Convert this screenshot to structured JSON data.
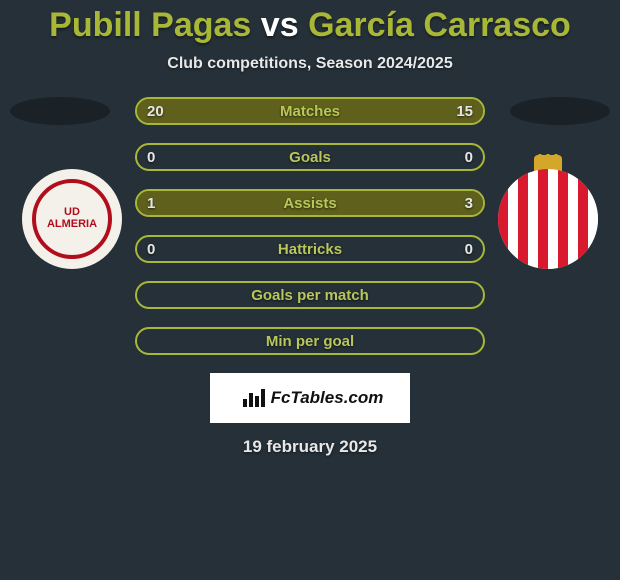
{
  "title_left": "Pubill Pagas",
  "title_vs": " vs ",
  "title_right": "García Carrasco",
  "title_color_left": "#a9b737",
  "title_color_vs": "#ffffff",
  "title_color_right": "#a9b737",
  "subtitle": "Club competitions, Season 2024/2025",
  "date": "19 february 2025",
  "watermark": "FcTables.com",
  "left_crest_text": "UD\nALMERIA",
  "bar_border": "#a9b737",
  "fill_left_color": "#5e601b",
  "fill_right_color": "#5e601b",
  "label_color": "#b9c75a",
  "bars": [
    {
      "label": "Matches",
      "left": "20",
      "right": "15",
      "left_pct": 57,
      "right_pct": 43
    },
    {
      "label": "Goals",
      "left": "0",
      "right": "0",
      "left_pct": 0,
      "right_pct": 0
    },
    {
      "label": "Assists",
      "left": "1",
      "right": "3",
      "left_pct": 25,
      "right_pct": 75
    },
    {
      "label": "Hattricks",
      "left": "0",
      "right": "0",
      "left_pct": 0,
      "right_pct": 0
    },
    {
      "label": "Goals per match",
      "left": "",
      "right": "",
      "left_pct": 0,
      "right_pct": 0
    },
    {
      "label": "Min per goal",
      "left": "",
      "right": "",
      "left_pct": 0,
      "right_pct": 0
    }
  ]
}
